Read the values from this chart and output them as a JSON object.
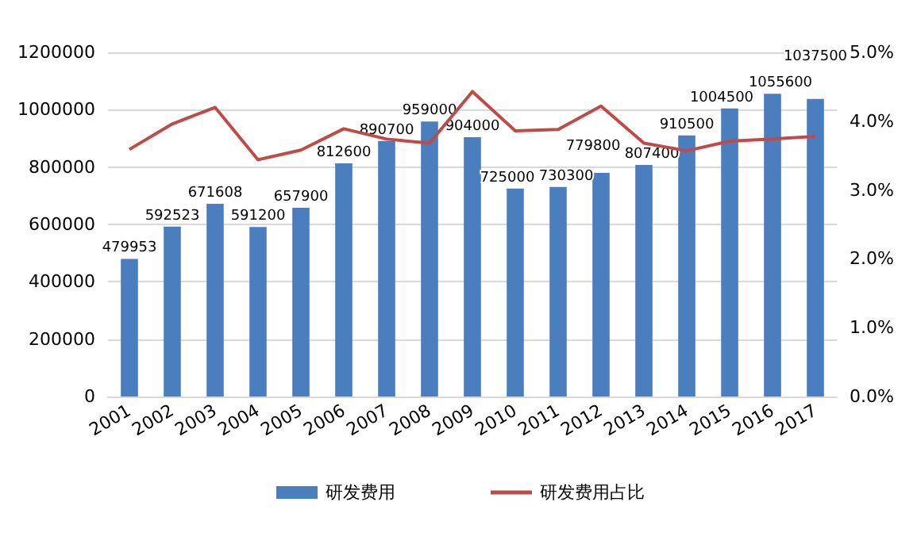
{
  "chart_data": {
    "type": "bar",
    "categories": [
      "2001",
      "2002",
      "2003",
      "2004",
      "2005",
      "2006",
      "2007",
      "2008",
      "2009",
      "2010",
      "2011",
      "2012",
      "2013",
      "2014",
      "2015",
      "2016",
      "2017"
    ],
    "series": [
      {
        "name": "研发费用",
        "color": "#4a7ebf",
        "values": [
          479953,
          592523,
          671608,
          591200,
          657900,
          812600,
          890700,
          959000,
          904000,
          725000,
          730300,
          779800,
          807400,
          910500,
          1004500,
          1055600,
          1037500
        ],
        "data_labels": true
      },
      {
        "name": "研发费用占比",
        "type": "line",
        "axis": "y2",
        "color": "#be4b48",
        "values": [
          3.59,
          3.96,
          4.2,
          3.44,
          3.58,
          3.89,
          3.74,
          3.68,
          4.43,
          3.86,
          3.88,
          4.22,
          3.68,
          3.57,
          3.71,
          3.74,
          3.78
        ]
      }
    ],
    "ylim": [
      0,
      1200000
    ],
    "yticks": [
      0,
      200000,
      400000,
      600000,
      800000,
      1000000,
      1200000
    ],
    "y2lim": [
      0,
      5
    ],
    "y2ticks": [
      {
        "value": 0,
        "label": "0.0%"
      },
      {
        "value": 1,
        "label": "1.0%"
      },
      {
        "value": 2,
        "label": "2.0%"
      },
      {
        "value": 3,
        "label": "3.0%"
      },
      {
        "value": 4,
        "label": "4.0%"
      },
      {
        "value": 5,
        "label": "5.0%"
      }
    ],
    "grid": "y",
    "legend": "bottom",
    "marker": "none"
  }
}
